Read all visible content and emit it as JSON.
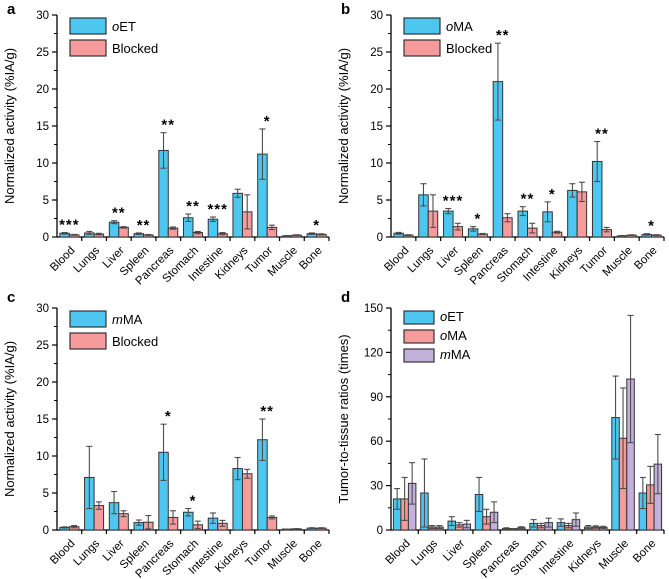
{
  "figure": {
    "background": "#ffffff"
  },
  "colors": {
    "oET": "#4EC7F0",
    "oMA": "#F69B9B",
    "mMA": "#C3B1DB",
    "blocked": "#F69B9B",
    "bar_border": "#333333",
    "error_bar": "#4d4d4d",
    "axis": "#000000"
  },
  "chart_data": [
    {
      "panel": "a",
      "type": "bar",
      "ylabel": "Normalized activity (%IA/g)",
      "ylim": [
        0,
        30
      ],
      "yticks": [
        0,
        5,
        10,
        15,
        20,
        25,
        30
      ],
      "minor_tick_step": 2.5,
      "grid": false,
      "legend_position": "top-left",
      "categories": [
        "Blood",
        "Lungs",
        "Liver",
        "Spleen",
        "Pancreas",
        "Stomach",
        "Intestine",
        "Kidneys",
        "Tumor",
        "Muscle",
        "Bone"
      ],
      "series": [
        {
          "name_prefix": "o",
          "name_rest": "ET",
          "color": "#4EC7F0",
          "values": [
            0.5,
            0.55,
            2.0,
            0.45,
            11.7,
            2.6,
            2.4,
            5.9,
            11.2,
            0.15,
            0.45
          ],
          "errors": [
            0.1,
            0.2,
            0.2,
            0.1,
            2.4,
            0.5,
            0.3,
            0.55,
            3.4,
            0.05,
            0.1
          ]
        },
        {
          "name_prefix": "",
          "name_rest": "Blocked",
          "color": "#F69B9B",
          "values": [
            0.3,
            0.4,
            1.3,
            0.28,
            1.2,
            0.6,
            0.45,
            3.4,
            1.3,
            0.25,
            0.35
          ],
          "errors": [
            0.05,
            0.1,
            0.1,
            0.06,
            0.15,
            0.15,
            0.15,
            2.3,
            0.3,
            0.05,
            0.08
          ]
        }
      ],
      "significance": [
        "***",
        "",
        "**",
        "**",
        "**",
        "**",
        "***",
        "",
        "*",
        "",
        "*"
      ]
    },
    {
      "panel": "b",
      "type": "bar",
      "ylabel": "Normalized activity (%IA/g)",
      "ylim": [
        0,
        30
      ],
      "yticks": [
        0,
        5,
        10,
        15,
        20,
        25,
        30
      ],
      "minor_tick_step": 2.5,
      "grid": false,
      "legend_position": "top-left",
      "categories": [
        "Blood",
        "Lungs",
        "Liver",
        "Spleen",
        "Pancreas",
        "Stomach",
        "Intestine",
        "Kidneys",
        "Tumor",
        "Muscle",
        "Bone"
      ],
      "series": [
        {
          "name_prefix": "o",
          "name_rest": "MA",
          "color": "#4EC7F0",
          "values": [
            0.5,
            5.7,
            3.5,
            1.1,
            21.0,
            3.5,
            3.4,
            6.3,
            10.2,
            0.15,
            0.35
          ],
          "errors": [
            0.12,
            1.5,
            0.35,
            0.3,
            5.2,
            0.6,
            1.35,
            0.9,
            2.7,
            0.05,
            0.1
          ]
        },
        {
          "name_prefix": "",
          "name_rest": "Blocked",
          "color": "#F69B9B",
          "values": [
            0.25,
            3.5,
            1.4,
            0.4,
            2.6,
            1.2,
            0.65,
            6.1,
            1.0,
            0.25,
            0.25
          ],
          "errors": [
            0.06,
            2.2,
            0.45,
            0.08,
            0.55,
            0.65,
            0.12,
            1.3,
            0.3,
            0.05,
            0.06
          ]
        }
      ],
      "significance": [
        "",
        "",
        "***",
        "*",
        "**",
        "**",
        "*",
        "",
        "**",
        "",
        "*"
      ]
    },
    {
      "panel": "c",
      "type": "bar",
      "ylabel": "Normalized activity (%IA/g)",
      "ylim": [
        0,
        30
      ],
      "yticks": [
        0,
        5,
        10,
        15,
        20,
        25,
        30
      ],
      "minor_tick_step": 2.5,
      "grid": false,
      "legend_position": "top-left",
      "categories": [
        "Blood",
        "Lungs",
        "Liver",
        "Spleen",
        "Pancreas",
        "Stomach",
        "Intestine",
        "Kidneys",
        "Tumor",
        "Muscle",
        "Bone"
      ],
      "series": [
        {
          "name_prefix": "m",
          "name_rest": "MA",
          "color": "#4EC7F0",
          "values": [
            0.35,
            7.1,
            3.7,
            1.0,
            10.5,
            2.4,
            1.6,
            8.3,
            12.2,
            0.1,
            0.25
          ],
          "errors": [
            0.08,
            4.2,
            1.5,
            0.35,
            3.8,
            0.5,
            0.7,
            1.5,
            2.8,
            0.03,
            0.06
          ]
        },
        {
          "name_prefix": "",
          "name_rest": "Blocked",
          "color": "#F69B9B",
          "values": [
            0.45,
            3.3,
            2.2,
            1.05,
            1.7,
            0.7,
            0.9,
            7.6,
            1.7,
            0.15,
            0.25
          ],
          "errors": [
            0.15,
            0.5,
            0.4,
            0.9,
            0.9,
            0.5,
            0.4,
            0.6,
            0.2,
            0.04,
            0.06
          ]
        }
      ],
      "significance": [
        "",
        "",
        "",
        "",
        "*",
        "*",
        "",
        "",
        "**",
        "",
        ""
      ]
    },
    {
      "panel": "d",
      "type": "bar",
      "ylabel": "Tumor-to-tissue ratios (times)",
      "ylim": [
        0,
        150
      ],
      "yticks": [
        0,
        30,
        60,
        90,
        120,
        150
      ],
      "minor_tick_step": 15,
      "grid": false,
      "legend_position": "top-left",
      "categories": [
        "Blood",
        "Lungs",
        "Liver",
        "Spleen",
        "Pancreas",
        "Stomach",
        "Intestine",
        "Kidneys",
        "Muscle",
        "Bone"
      ],
      "series": [
        {
          "name_prefix": "o",
          "name_rest": "ET",
          "color": "#4EC7F0",
          "values": [
            21,
            25,
            6,
            24,
            1,
            4.5,
            5,
            2,
            76,
            25
          ],
          "errors": [
            7,
            23,
            3,
            11.5,
            0.5,
            2.5,
            2.5,
            1,
            28,
            10.5
          ]
        },
        {
          "name_prefix": "o",
          "name_rest": "MA",
          "color": "#F69B9B",
          "values": [
            21,
            2,
            3.5,
            9,
            0.7,
            3,
            3,
            2,
            62,
            30.5
          ],
          "errors": [
            14.5,
            1,
            1.5,
            5,
            0.3,
            1.5,
            1.5,
            0.8,
            34,
            12.5
          ]
        },
        {
          "name_prefix": "m",
          "name_rest": "MA",
          "color": "#C3B1DB",
          "values": [
            31.5,
            2,
            4,
            12,
            1.5,
            5,
            7,
            1.8,
            102,
            44.5
          ],
          "errors": [
            14,
            1,
            2.5,
            7,
            0.7,
            3,
            4.5,
            0.7,
            43,
            20
          ]
        }
      ],
      "significance": [
        "",
        "",
        "",
        "",
        "",
        "",
        "",
        "",
        "",
        ""
      ]
    }
  ]
}
